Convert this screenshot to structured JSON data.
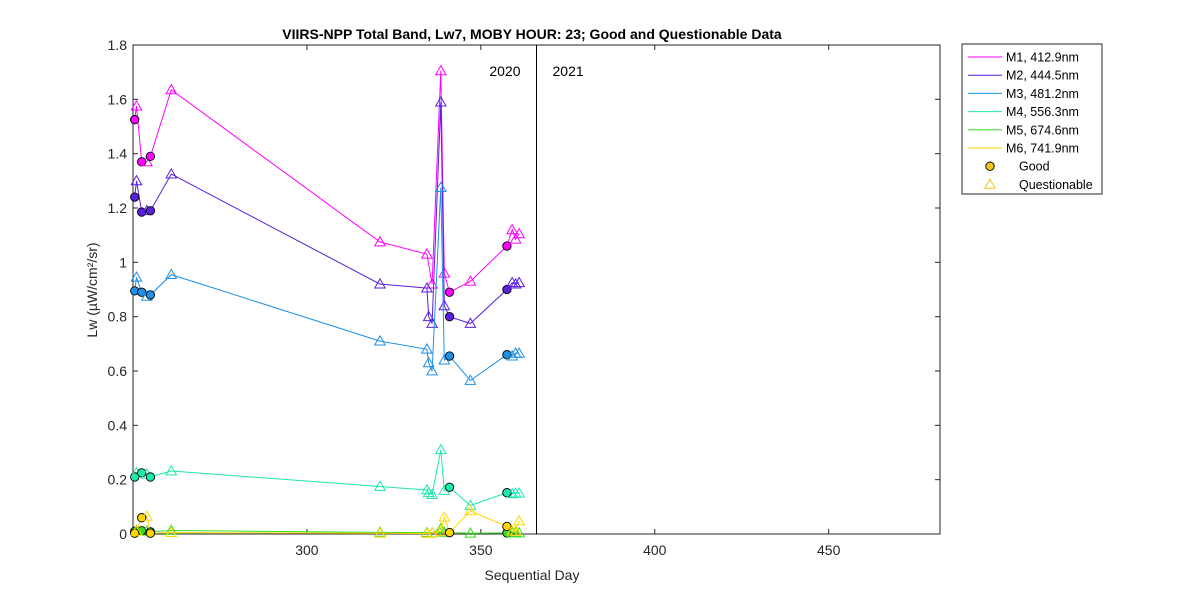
{
  "chart_data": {
    "type": "line",
    "title": "VIIRS-NPP Total Band,  Lw7, MOBY HOUR: 23;  Good and Questionable Data",
    "xlabel": "Sequential Day",
    "ylabel": "Lw (µW/cm²/sr)",
    "xlim": [
      250,
      482
    ],
    "ylim": [
      0,
      1.8
    ],
    "xticks": [
      300,
      350,
      400,
      450
    ],
    "yticks": [
      0,
      0.2,
      0.4,
      0.6,
      0.8,
      1,
      1.2,
      1.4,
      1.6,
      1.8
    ],
    "xtick_labels": [
      "300",
      "350",
      "400",
      "450"
    ],
    "ytick_labels": [
      "0",
      "0.2",
      "0.4",
      "0.6",
      "0.8",
      "1",
      "1.2",
      "1.4",
      "1.6",
      "1.8"
    ],
    "year_divider_x": 366,
    "year_labels": [
      "2020",
      "2021"
    ],
    "grid": false,
    "legend_position": "outside-top-right",
    "marker_legend": [
      {
        "name": "Good",
        "marker": "circle",
        "color": "#f5c518"
      },
      {
        "name": "Questionable",
        "marker": "triangle",
        "color": "#f5c518"
      }
    ],
    "series": [
      {
        "name": "M1, 412.9nm",
        "color": "#ff00ff",
        "points": [
          {
            "x": 250.5,
            "y": 1.525,
            "q": "good"
          },
          {
            "x": 251,
            "y": 1.575,
            "q": "questionable"
          },
          {
            "x": 252.5,
            "y": 1.37,
            "q": "good"
          },
          {
            "x": 254,
            "y": 1.37,
            "q": "questionable"
          },
          {
            "x": 255,
            "y": 1.39,
            "q": "good"
          },
          {
            "x": 261,
            "y": 1.635,
            "q": "questionable"
          },
          {
            "x": 321,
            "y": 1.075,
            "q": "questionable"
          },
          {
            "x": 334.5,
            "y": 1.03,
            "q": "questionable"
          },
          {
            "x": 336,
            "y": 0.92,
            "q": "questionable"
          },
          {
            "x": 338.5,
            "y": 1.705,
            "q": "questionable"
          },
          {
            "x": 339.5,
            "y": 0.96,
            "q": "questionable"
          },
          {
            "x": 341,
            "y": 0.89,
            "q": "good"
          },
          {
            "x": 347,
            "y": 0.93,
            "q": "questionable"
          },
          {
            "x": 357.5,
            "y": 1.06,
            "q": "good"
          },
          {
            "x": 359,
            "y": 1.12,
            "q": "questionable"
          },
          {
            "x": 360,
            "y": 1.085,
            "q": "questionable"
          },
          {
            "x": 361,
            "y": 1.105,
            "q": "questionable"
          }
        ]
      },
      {
        "name": "M2, 444.5nm",
        "color": "#5a1fe0",
        "points": [
          {
            "x": 250.5,
            "y": 1.24,
            "q": "good"
          },
          {
            "x": 251,
            "y": 1.3,
            "q": "questionable"
          },
          {
            "x": 252.5,
            "y": 1.185,
            "q": "good"
          },
          {
            "x": 254,
            "y": 1.19,
            "q": "questionable"
          },
          {
            "x": 255,
            "y": 1.19,
            "q": "good"
          },
          {
            "x": 261,
            "y": 1.325,
            "q": "questionable"
          },
          {
            "x": 321,
            "y": 0.92,
            "q": "questionable"
          },
          {
            "x": 334.5,
            "y": 0.905,
            "q": "questionable"
          },
          {
            "x": 335,
            "y": 0.8,
            "q": "questionable"
          },
          {
            "x": 336,
            "y": 0.775,
            "q": "questionable"
          },
          {
            "x": 338.5,
            "y": 1.59,
            "q": "questionable"
          },
          {
            "x": 339.5,
            "y": 0.84,
            "q": "questionable"
          },
          {
            "x": 341,
            "y": 0.8,
            "q": "good"
          },
          {
            "x": 347,
            "y": 0.775,
            "q": "questionable"
          },
          {
            "x": 357.5,
            "y": 0.9,
            "q": "good"
          },
          {
            "x": 359,
            "y": 0.925,
            "q": "questionable"
          },
          {
            "x": 360,
            "y": 0.92,
            "q": "questionable"
          },
          {
            "x": 361,
            "y": 0.925,
            "q": "questionable"
          }
        ]
      },
      {
        "name": "M3, 481.2nm",
        "color": "#1e90e6",
        "points": [
          {
            "x": 250.5,
            "y": 0.895,
            "q": "good"
          },
          {
            "x": 251,
            "y": 0.945,
            "q": "questionable"
          },
          {
            "x": 252.5,
            "y": 0.89,
            "q": "good"
          },
          {
            "x": 254,
            "y": 0.875,
            "q": "questionable"
          },
          {
            "x": 255,
            "y": 0.88,
            "q": "good"
          },
          {
            "x": 261,
            "y": 0.955,
            "q": "questionable"
          },
          {
            "x": 321,
            "y": 0.71,
            "q": "questionable"
          },
          {
            "x": 334.5,
            "y": 0.68,
            "q": "questionable"
          },
          {
            "x": 335,
            "y": 0.63,
            "q": "questionable"
          },
          {
            "x": 336,
            "y": 0.6,
            "q": "questionable"
          },
          {
            "x": 338.5,
            "y": 1.275,
            "q": "questionable"
          },
          {
            "x": 339.5,
            "y": 0.64,
            "q": "questionable"
          },
          {
            "x": 341,
            "y": 0.655,
            "q": "good"
          },
          {
            "x": 347,
            "y": 0.565,
            "q": "questionable"
          },
          {
            "x": 357.5,
            "y": 0.66,
            "q": "good"
          },
          {
            "x": 359,
            "y": 0.655,
            "q": "questionable"
          },
          {
            "x": 360,
            "y": 0.665,
            "q": "questionable"
          },
          {
            "x": 361,
            "y": 0.665,
            "q": "questionable"
          }
        ]
      },
      {
        "name": "M4, 556.3nm",
        "color": "#1de8b0",
        "points": [
          {
            "x": 250.5,
            "y": 0.21,
            "q": "good"
          },
          {
            "x": 251,
            "y": 0.225,
            "q": "questionable"
          },
          {
            "x": 252.5,
            "y": 0.225,
            "q": "good"
          },
          {
            "x": 254,
            "y": 0.22,
            "q": "questionable"
          },
          {
            "x": 255,
            "y": 0.21,
            "q": "good"
          },
          {
            "x": 261,
            "y": 0.232,
            "q": "questionable"
          },
          {
            "x": 321,
            "y": 0.175,
            "q": "questionable"
          },
          {
            "x": 334.5,
            "y": 0.162,
            "q": "questionable"
          },
          {
            "x": 335,
            "y": 0.152,
            "q": "questionable"
          },
          {
            "x": 336,
            "y": 0.145,
            "q": "questionable"
          },
          {
            "x": 338.5,
            "y": 0.31,
            "q": "questionable"
          },
          {
            "x": 339.5,
            "y": 0.16,
            "q": "questionable"
          },
          {
            "x": 341,
            "y": 0.172,
            "q": "good"
          },
          {
            "x": 347,
            "y": 0.105,
            "q": "questionable"
          },
          {
            "x": 357.5,
            "y": 0.152,
            "q": "good"
          },
          {
            "x": 359,
            "y": 0.148,
            "q": "questionable"
          },
          {
            "x": 360,
            "y": 0.15,
            "q": "questionable"
          },
          {
            "x": 361,
            "y": 0.15,
            "q": "questionable"
          }
        ]
      },
      {
        "name": "M5, 674.6nm",
        "color": "#33dd22",
        "points": [
          {
            "x": 250.5,
            "y": 0.01,
            "q": "good"
          },
          {
            "x": 251,
            "y": 0.012,
            "q": "questionable"
          },
          {
            "x": 252.5,
            "y": 0.012,
            "q": "good"
          },
          {
            "x": 254,
            "y": 0.01,
            "q": "questionable"
          },
          {
            "x": 255,
            "y": 0.008,
            "q": "good"
          },
          {
            "x": 261,
            "y": 0.013,
            "q": "questionable"
          },
          {
            "x": 321,
            "y": 0.006,
            "q": "questionable"
          },
          {
            "x": 334.5,
            "y": 0.005,
            "q": "questionable"
          },
          {
            "x": 336,
            "y": 0.004,
            "q": "questionable"
          },
          {
            "x": 338.5,
            "y": 0.02,
            "q": "questionable"
          },
          {
            "x": 339.5,
            "y": 0.006,
            "q": "questionable"
          },
          {
            "x": 341,
            "y": 0.005,
            "q": "good"
          },
          {
            "x": 347,
            "y": 0.003,
            "q": "questionable"
          },
          {
            "x": 357.5,
            "y": 0.004,
            "q": "good"
          },
          {
            "x": 359,
            "y": 0.004,
            "q": "questionable"
          },
          {
            "x": 360,
            "y": 0.005,
            "q": "questionable"
          },
          {
            "x": 361,
            "y": 0.004,
            "q": "questionable"
          }
        ]
      },
      {
        "name": "M6, 741.9nm",
        "color": "#ffd700",
        "points": [
          {
            "x": 250.5,
            "y": 0.003,
            "q": "good"
          },
          {
            "x": 251,
            "y": 0.01,
            "q": "questionable"
          },
          {
            "x": 252.5,
            "y": 0.06,
            "q": "good"
          },
          {
            "x": 254,
            "y": 0.065,
            "q": "questionable"
          },
          {
            "x": 255,
            "y": 0.003,
            "q": "good"
          },
          {
            "x": 261,
            "y": 0.005,
            "q": "questionable"
          },
          {
            "x": 321,
            "y": 0.003,
            "q": "questionable"
          },
          {
            "x": 334.5,
            "y": 0.002,
            "q": "questionable"
          },
          {
            "x": 336,
            "y": 0.004,
            "q": "questionable"
          },
          {
            "x": 338.5,
            "y": 0.01,
            "q": "questionable"
          },
          {
            "x": 339.5,
            "y": 0.062,
            "q": "questionable"
          },
          {
            "x": 341,
            "y": 0.005,
            "q": "good"
          },
          {
            "x": 347,
            "y": 0.085,
            "q": "questionable"
          },
          {
            "x": 357.5,
            "y": 0.028,
            "q": "good"
          },
          {
            "x": 359,
            "y": 0.01,
            "q": "questionable"
          },
          {
            "x": 360,
            "y": 0.01,
            "q": "questionable"
          },
          {
            "x": 361,
            "y": 0.048,
            "q": "questionable"
          }
        ]
      }
    ]
  }
}
